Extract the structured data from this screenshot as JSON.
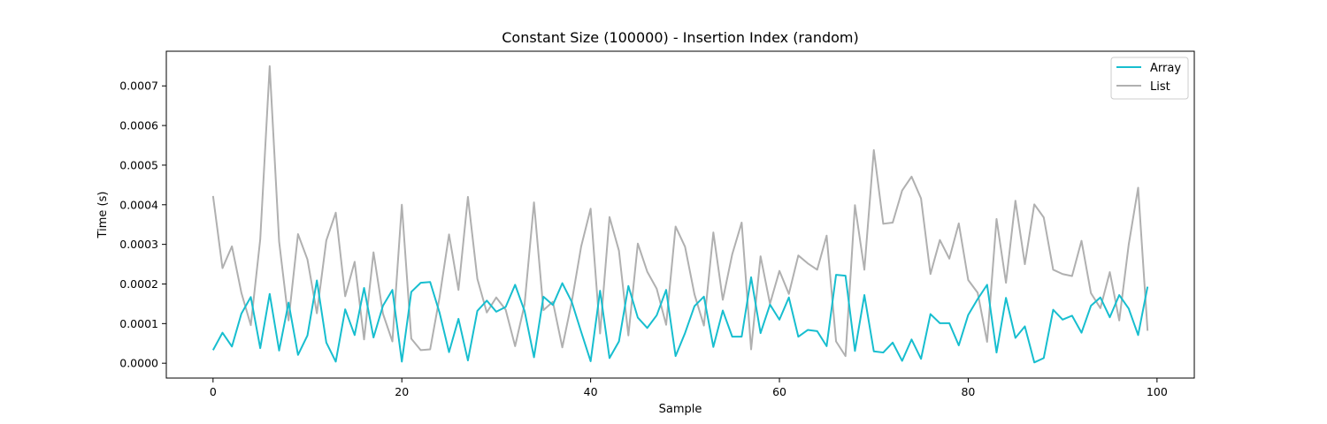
{
  "chart_data": {
    "type": "line",
    "title": "Constant Size (100000) - Insertion Index (random)",
    "xlabel": "Sample",
    "ylabel": "Time (s)",
    "xlim": [
      -4.95,
      103.95
    ],
    "ylim": [
      -3.75e-05,
      0.0007875
    ],
    "xticks": [
      0,
      20,
      40,
      60,
      80,
      100
    ],
    "xtick_labels": [
      "0",
      "20",
      "40",
      "60",
      "80",
      "100"
    ],
    "yticks": [
      0,
      0.0001,
      0.0002,
      0.0003,
      0.0004,
      0.0005,
      0.0006,
      0.0007
    ],
    "ytick_labels": [
      "0.0000",
      "0.0001",
      "0.0002",
      "0.0003",
      "0.0004",
      "0.0005",
      "0.0006",
      "0.0007"
    ],
    "grid": false,
    "legend_position": "top-right",
    "x": [
      0,
      1,
      2,
      3,
      4,
      5,
      6,
      7,
      8,
      9,
      10,
      11,
      12,
      13,
      14,
      15,
      16,
      17,
      18,
      19,
      20,
      21,
      22,
      23,
      24,
      25,
      26,
      27,
      28,
      29,
      30,
      31,
      32,
      33,
      34,
      35,
      36,
      37,
      38,
      39,
      40,
      41,
      42,
      43,
      44,
      45,
      46,
      47,
      48,
      49,
      50,
      51,
      52,
      53,
      54,
      55,
      56,
      57,
      58,
      59,
      60,
      61,
      62,
      63,
      64,
      65,
      66,
      67,
      68,
      69,
      70,
      71,
      72,
      73,
      74,
      75,
      76,
      77,
      78,
      79,
      80,
      81,
      82,
      83,
      84,
      85,
      86,
      87,
      88,
      89,
      90,
      91,
      92,
      93,
      94,
      95,
      96,
      97,
      98,
      99
    ],
    "series": [
      {
        "name": "Array",
        "color": "#17becf",
        "values": [
          3.3e-05,
          7.7e-05,
          4.2e-05,
          0.000125,
          0.000167,
          3.8e-05,
          0.000175,
          3.2e-05,
          0.000153,
          2.1e-05,
          7e-05,
          0.000209,
          5.2e-05,
          4e-06,
          0.000136,
          7.1e-05,
          0.00019,
          6.5e-05,
          0.000145,
          0.000185,
          4e-06,
          0.00018,
          0.000203,
          0.000205,
          0.000127,
          2.8e-05,
          0.000112,
          7e-06,
          0.000132,
          0.000158,
          0.00013,
          0.000142,
          0.000198,
          0.000132,
          1.5e-05,
          0.000168,
          0.000147,
          0.000202,
          0.000155,
          7.9e-05,
          5e-06,
          0.000183,
          1.3e-05,
          5.5e-05,
          0.000195,
          0.000115,
          8.9e-05,
          0.000121,
          0.000185,
          1.8e-05,
          7.6e-05,
          0.000144,
          0.000168,
          4.1e-05,
          0.000133,
          6.7e-05,
          6.7e-05,
          0.000217,
          7.6e-05,
          0.000148,
          0.00011,
          0.000166,
          6.7e-05,
          8.4e-05,
          8.1e-05,
          4.3e-05,
          0.000223,
          0.000221,
          3.1e-05,
          0.000172,
          3e-05,
          2.7e-05,
          5.2e-05,
          6e-06,
          6e-05,
          1.1e-05,
          0.000124,
          0.000101,
          0.000101,
          4.5e-05,
          0.000122,
          0.000162,
          0.000198,
          2.7e-05,
          0.000165,
          6.4e-05,
          9.3e-05,
          2e-06,
          1.3e-05,
          0.000135,
          0.00011,
          0.00012,
          7.7e-05,
          0.000145,
          0.000166,
          0.000116,
          0.000172,
          0.000138,
          7.1e-05,
          0.000193
        ]
      },
      {
        "name": "List",
        "color": "#b0b0b0",
        "values": [
          0.000422,
          0.00024,
          0.000295,
          0.000178,
          9.6e-05,
          0.000313,
          0.00075,
          0.000307,
          0.000108,
          0.000326,
          0.000262,
          0.000126,
          0.00031,
          0.00038,
          0.000169,
          0.000256,
          6e-05,
          0.00028,
          0.000125,
          5.5e-05,
          0.0004,
          6.2e-05,
          3.3e-05,
          3.5e-05,
          0.000167,
          0.000325,
          0.000185,
          0.00042,
          0.000213,
          0.000128,
          0.000166,
          0.000135,
          4.3e-05,
          0.000148,
          0.000406,
          0.000134,
          0.000155,
          4e-05,
          0.000155,
          0.000295,
          0.00039,
          7.5e-05,
          0.000369,
          0.000284,
          7e-05,
          0.000302,
          0.000231,
          0.000188,
          9.7e-05,
          0.000345,
          0.000294,
          0.000174,
          9.5e-05,
          0.00033,
          0.00016,
          0.000275,
          0.000355,
          3.5e-05,
          0.00027,
          0.00015,
          0.000233,
          0.000175,
          0.000272,
          0.000252,
          0.000236,
          0.000322,
          5.5e-05,
          1.8e-05,
          0.000399,
          0.000236,
          0.000538,
          0.000352,
          0.000355,
          0.000436,
          0.000471,
          0.000416,
          0.000225,
          0.000311,
          0.000264,
          0.000353,
          0.00021,
          0.000178,
          5.4e-05,
          0.000364,
          0.000203,
          0.00041,
          0.00025,
          0.000401,
          0.000368,
          0.000236,
          0.000225,
          0.00022,
          0.000309,
          0.000177,
          0.000139,
          0.00023,
          0.000108,
          0.000299,
          0.000443,
          8.2e-05
        ]
      }
    ]
  }
}
